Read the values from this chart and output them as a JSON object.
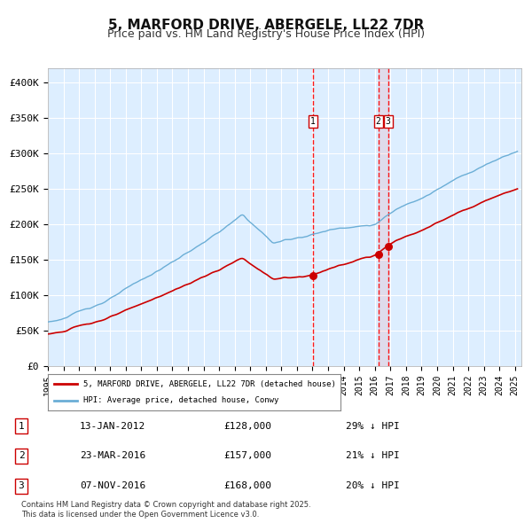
{
  "title": "5, MARFORD DRIVE, ABERGELE, LL22 7DR",
  "subtitle": "Price paid vs. HM Land Registry's House Price Index (HPI)",
  "legend_property": "5, MARFORD DRIVE, ABERGELE, LL22 7DR (detached house)",
  "legend_hpi": "HPI: Average price, detached house, Conwy",
  "footer": "Contains HM Land Registry data © Crown copyright and database right 2025.\nThis data is licensed under the Open Government Licence v3.0.",
  "ylabel": "",
  "ylim": [
    0,
    420000
  ],
  "yticks": [
    0,
    50000,
    100000,
    150000,
    200000,
    250000,
    300000,
    350000,
    400000
  ],
  "ytick_labels": [
    "£0",
    "£50K",
    "£100K",
    "£150K",
    "£200K",
    "£250K",
    "£300K",
    "£350K",
    "£400K"
  ],
  "hpi_color": "#6baed6",
  "property_color": "#cc0000",
  "background_color": "#ddeeff",
  "plot_bg_color": "#ddeeff",
  "grid_color": "#ffffff",
  "transaction_color": "#cc0000",
  "vline_color": "#ff0000",
  "transactions": [
    {
      "date": "2012-01-13",
      "price": 128000,
      "label": "1"
    },
    {
      "date": "2016-03-23",
      "price": 157000,
      "label": "2"
    },
    {
      "date": "2016-11-07",
      "price": 168000,
      "label": "3"
    }
  ],
  "table_rows": [
    {
      "num": "1",
      "date": "13-JAN-2012",
      "price": "£128,000",
      "pct": "29% ↓ HPI"
    },
    {
      "num": "2",
      "date": "23-MAR-2016",
      "price": "£157,000",
      "pct": "21% ↓ HPI"
    },
    {
      "num": "3",
      "date": "07-NOV-2016",
      "price": "£168,000",
      "pct": "20% ↓ HPI"
    }
  ]
}
